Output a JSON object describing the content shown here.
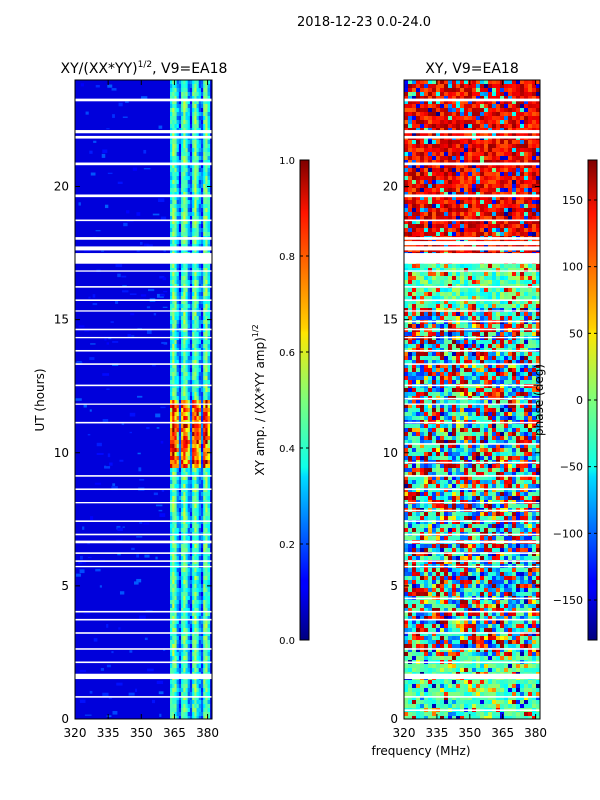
{
  "figure_title": "2018-12-23 0.0-24.0",
  "shared_xlabel": "frequency (MHz)",
  "chart_data": [
    {
      "type": "heatmap",
      "title": "XY/(XX*YY)",
      "title_exponent": "1/2",
      "title_suffix": ", V9=EA18",
      "ylabel": "UT (hours)",
      "xlim": [
        320,
        382
      ],
      "ylim": [
        0,
        24
      ],
      "xticks": [
        "320",
        "335",
        "350",
        "365",
        "380"
      ],
      "xtick_values": [
        320,
        335,
        350,
        365,
        380
      ],
      "yticks": [
        "0",
        "5",
        "10",
        "15",
        "20"
      ],
      "ytick_values": [
        0,
        5,
        10,
        15,
        20
      ],
      "colorbar": {
        "label": "XY amp. / (XX*YY amp)",
        "label_exponent": "1/2",
        "range": [
          0.0,
          1.0
        ],
        "ticks": [
          "0.0",
          "0.2",
          "0.4",
          "0.6",
          "0.8",
          "1.0"
        ],
        "tick_values": [
          0.0,
          0.2,
          0.4,
          0.6,
          0.8,
          1.0
        ]
      },
      "notes": "Amplitude near 0 below ~363 MHz; bright vertical channels 363-380 MHz; white gaps are flagged times."
    },
    {
      "type": "heatmap",
      "title": "XY, V9=EA18",
      "xlim": [
        320,
        382
      ],
      "ylim": [
        0,
        24
      ],
      "xticks": [
        "320",
        "335",
        "350",
        "365",
        "380"
      ],
      "xtick_values": [
        320,
        335,
        350,
        365,
        380
      ],
      "yticks": [
        "0",
        "5",
        "10",
        "15",
        "20"
      ],
      "ytick_values": [
        0,
        5,
        10,
        15,
        20
      ],
      "colorbar": {
        "label": "phase (deg)",
        "range": [
          -180,
          180
        ],
        "ticks": [
          "−150",
          "−100",
          "−50",
          "0",
          "50",
          "100",
          "150"
        ],
        "tick_values": [
          -150,
          -100,
          -50,
          0,
          50,
          100,
          150
        ]
      },
      "notes": "Phase is noisy; mostly red (~150 deg) between 17.5 and 24 h."
    }
  ]
}
